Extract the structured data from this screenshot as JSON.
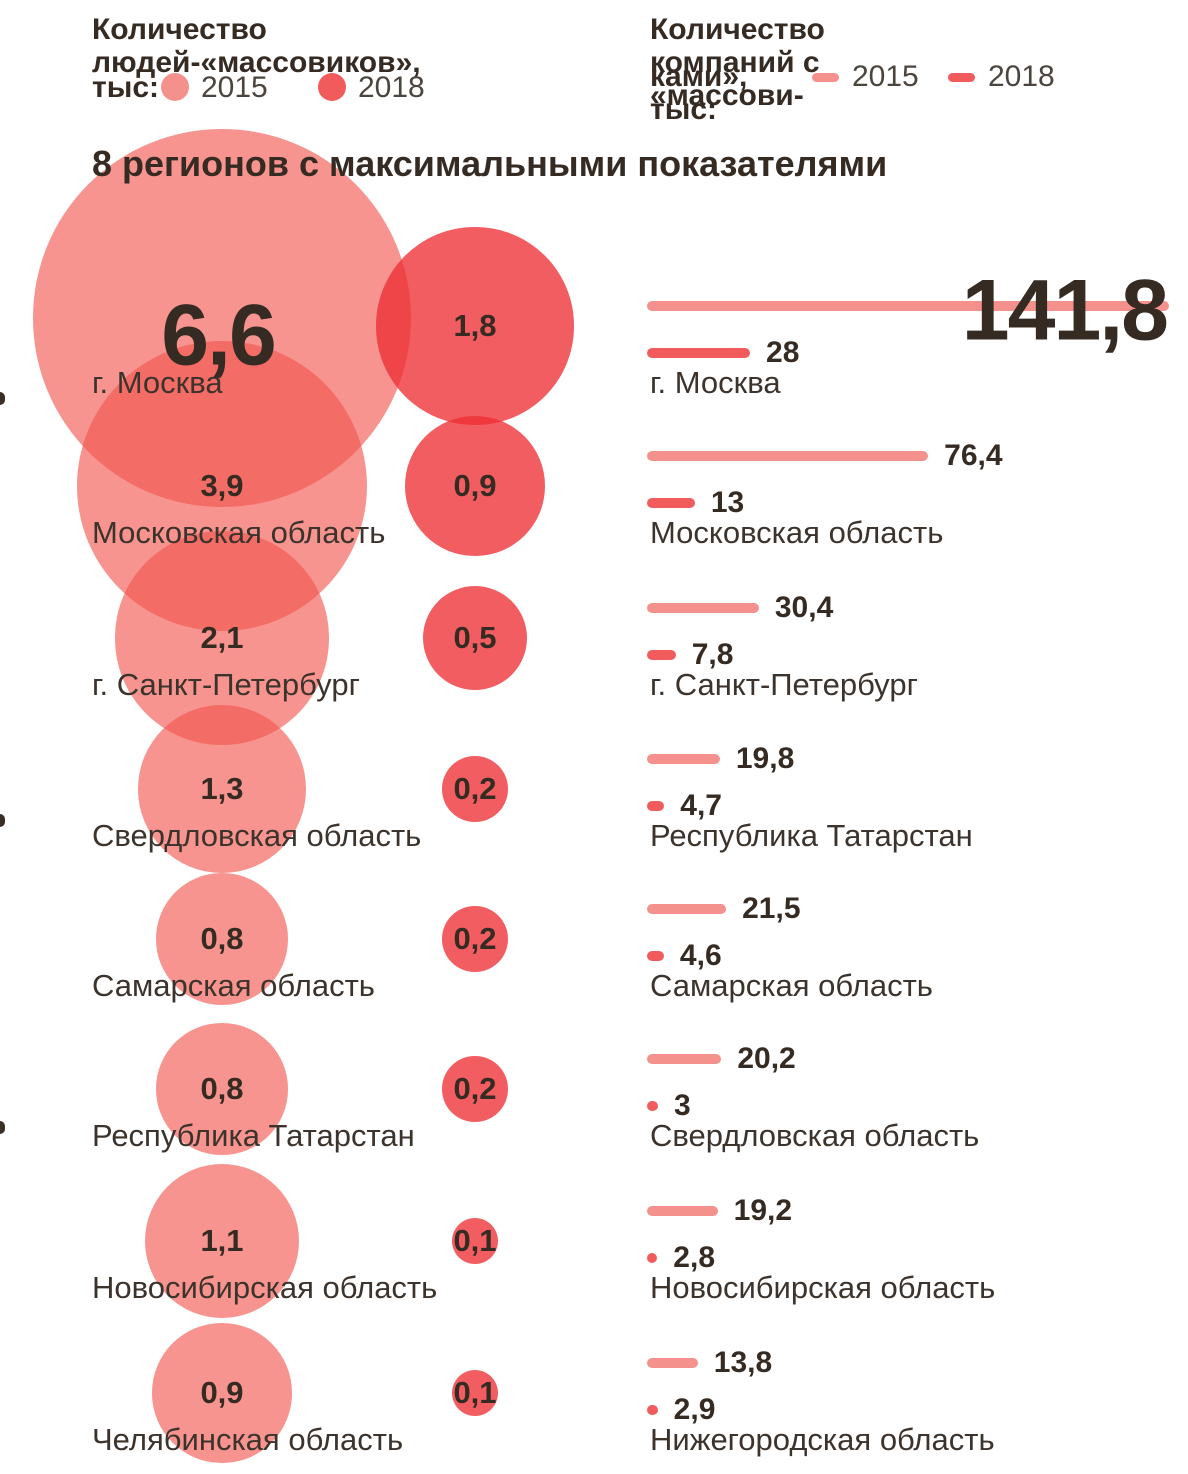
{
  "title": "8 регионов с максимальными показателями",
  "legend_people": {
    "title_line1": "Количество людей-«массовиков»,",
    "unit_prefix": "тыс:",
    "year_2015": "2015",
    "year_2018": "2018"
  },
  "legend_companies": {
    "title_line1": "Количество компаний с «массови-",
    "unit_prefix": "ками», тыс:",
    "year_2015": "2015",
    "year_2018": "2018"
  },
  "colors": {
    "pink_2015": "#F5918D",
    "red_2018": "#F15B5C",
    "text_dark": "#362B22"
  },
  "chart_data": [
    {
      "type": "scatter",
      "style": "proportional-area-bubbles",
      "title": "Количество людей-«массовиков», тыс",
      "legend_position": "top",
      "series": [
        "2015",
        "2018"
      ],
      "rows": [
        {
          "region": "г. Москва",
          "v2015": 6.6,
          "v2015_label": "6,6",
          "v2018": 1.8,
          "v2018_label": "1,8"
        },
        {
          "region": "Московская область",
          "v2015": 3.9,
          "v2015_label": "3,9",
          "v2018": 0.9,
          "v2018_label": "0,9"
        },
        {
          "region": "г. Санкт-Петербург",
          "v2015": 2.1,
          "v2015_label": "2,1",
          "v2018": 0.5,
          "v2018_label": "0,5"
        },
        {
          "region": "Свердловская область",
          "v2015": 1.3,
          "v2015_label": "1,3",
          "v2018": 0.2,
          "v2018_label": "0,2"
        },
        {
          "region": "Самарская область",
          "v2015": 0.8,
          "v2015_label": "0,8",
          "v2018": 0.2,
          "v2018_label": "0,2"
        },
        {
          "region": "Республика Татарстан",
          "v2015": 0.8,
          "v2015_label": "0,8",
          "v2018": 0.2,
          "v2018_label": "0,2"
        },
        {
          "region": "Новосибирская область",
          "v2015": 1.1,
          "v2015_label": "1,1",
          "v2018": 0.1,
          "v2018_label": "0,1"
        },
        {
          "region": "Челябинская область",
          "v2015": 0.9,
          "v2015_label": "0,9",
          "v2018": 0.1,
          "v2018_label": "0,1"
        }
      ]
    },
    {
      "type": "bar",
      "title": "Количество компаний с «массовиками», тыс",
      "legend_position": "top",
      "series": [
        "2015",
        "2018"
      ],
      "rows": [
        {
          "region": "г. Москва",
          "v2015": 141.8,
          "v2015_label": "141,8",
          "v2018": 28,
          "v2018_label": "28"
        },
        {
          "region": "Московская область",
          "v2015": 76.4,
          "v2015_label": "76,4",
          "v2018": 13,
          "v2018_label": "13"
        },
        {
          "region": "г. Санкт-Петербург",
          "v2015": 30.4,
          "v2015_label": "30,4",
          "v2018": 7.8,
          "v2018_label": "7,8"
        },
        {
          "region": "Республика Татарстан",
          "v2015": 19.8,
          "v2015_label": "19,8",
          "v2018": 4.7,
          "v2018_label": "4,7"
        },
        {
          "region": "Самарская область",
          "v2015": 21.5,
          "v2015_label": "21,5",
          "v2018": 4.6,
          "v2018_label": "4,6"
        },
        {
          "region": "Свердловская область",
          "v2015": 20.2,
          "v2015_label": "20,2",
          "v2018": 3,
          "v2018_label": "3"
        },
        {
          "region": "Новосибирская область",
          "v2015": 19.2,
          "v2015_label": "19,2",
          "v2018": 2.8,
          "v2018_label": "2,8"
        },
        {
          "region": "Нижегородская область",
          "v2015": 13.8,
          "v2015_label": "13,8",
          "v2018": 2.9,
          "v2018_label": "2,9"
        }
      ]
    }
  ]
}
